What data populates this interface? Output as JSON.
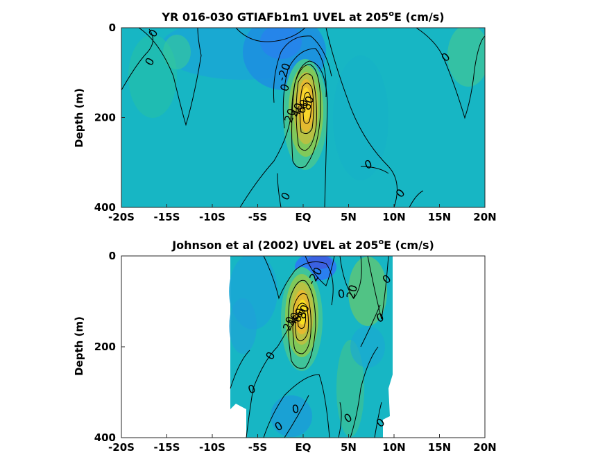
{
  "chart_data": [
    {
      "type": "heatmap",
      "title": "YR 016-030 GTIAFb1m1 UVEL at 205",
      "title_sup": "o",
      "title_tail": "E (cm/s)",
      "ylabel": "Depth (m)",
      "xlim": [
        -20,
        20
      ],
      "ylim": [
        0,
        400
      ],
      "y_reversed": true,
      "x_ticks": [
        -20,
        -15,
        -10,
        -5,
        0,
        5,
        10,
        15,
        20
      ],
      "x_tick_labels": [
        "-20S",
        "-15S",
        "-10S",
        "-5S",
        "EQ",
        "5N",
        "10N",
        "15N",
        "20N"
      ],
      "y_ticks": [
        0,
        200,
        400
      ],
      "y_tick_labels": [
        "0",
        "200",
        "400"
      ],
      "colormap": [
        "#3d26a8",
        "#2a7ff0",
        "#1caed4",
        "#22c1b4",
        "#7cc95c",
        "#d6ba3a",
        "#f9fb0e"
      ],
      "data_extent_x": [
        -20,
        20
      ],
      "contour_labels": [
        "0",
        "0",
        "-20",
        "0",
        "20",
        "40",
        "60",
        "80",
        "0",
        "0",
        "0",
        "0"
      ]
    },
    {
      "type": "heatmap",
      "title": "Johnson et al (2002) UVEL at 205",
      "title_sup": "o",
      "title_tail": "E (cm/s)",
      "ylabel": "Depth (m)",
      "xlim": [
        -20,
        20
      ],
      "ylim": [
        0,
        400
      ],
      "y_reversed": true,
      "x_ticks": [
        -20,
        -15,
        -10,
        -5,
        0,
        5,
        10,
        15,
        20
      ],
      "x_tick_labels": [
        "-20S",
        "-15S",
        "-10S",
        "-5S",
        "EQ",
        "5N",
        "10N",
        "15N",
        "20N"
      ],
      "y_ticks": [
        0,
        200,
        400
      ],
      "y_tick_labels": [
        "0",
        "200",
        "400"
      ],
      "colormap": [
        "#3d26a8",
        "#2a7ff0",
        "#1caed4",
        "#22c1b4",
        "#7cc95c",
        "#d6ba3a",
        "#f9fb0e"
      ],
      "data_extent_x": [
        -8,
        10
      ],
      "contour_labels": [
        "-20",
        "20",
        "0",
        "20",
        "40",
        "60",
        "80",
        "0",
        "0",
        "0",
        "0",
        "0",
        "0",
        "0",
        "0"
      ]
    }
  ]
}
